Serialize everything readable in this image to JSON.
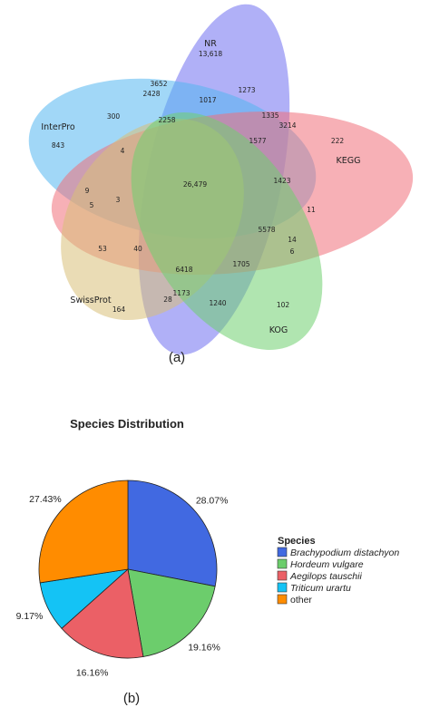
{
  "chart_data": [
    {
      "type": "venn",
      "caption": "(a)",
      "sets": [
        {
          "name": "NR",
          "total": "13,618",
          "color": "#6f6ff0"
        },
        {
          "name": "InterPro",
          "total": "843",
          "color": "#54b6f0"
        },
        {
          "name": "KEGG",
          "total": "222",
          "color": "#f0707a"
        },
        {
          "name": "SwissProt",
          "total": "164",
          "color": "#d8c078"
        },
        {
          "name": "KOG",
          "total": "102",
          "color": "#70d070"
        }
      ],
      "regions": [
        "3652",
        "2428",
        "1017",
        "1273",
        "300",
        "2258",
        "1335",
        "3214",
        "4",
        "1577",
        "26,479",
        "1423",
        "9",
        "3",
        "5",
        "11",
        "5578",
        "14",
        "53",
        "40",
        "6",
        "6418",
        "1705",
        "28",
        "1173",
        "1240"
      ]
    },
    {
      "type": "pie",
      "caption": "(b)",
      "title": "Species Distribution",
      "legend_title": "Species",
      "legend_position": "right",
      "slices": [
        {
          "name": "Brachypodium distachyon",
          "value": 28.07,
          "label": "28.07%",
          "color": "#4169e1"
        },
        {
          "name": "Hordeum vulgare",
          "value": 19.16,
          "label": "19.16%",
          "color": "#6ccd6c"
        },
        {
          "name": "Aegilops tauschii",
          "value": 16.16,
          "label": "16.16%",
          "color": "#eb6066"
        },
        {
          "name": "Triticum urartu",
          "value": 9.17,
          "label": "9.17%",
          "color": "#14c3f5"
        },
        {
          "name": "other",
          "value": 27.43,
          "label": "27.43%",
          "color": "#ff8c00"
        }
      ]
    }
  ]
}
